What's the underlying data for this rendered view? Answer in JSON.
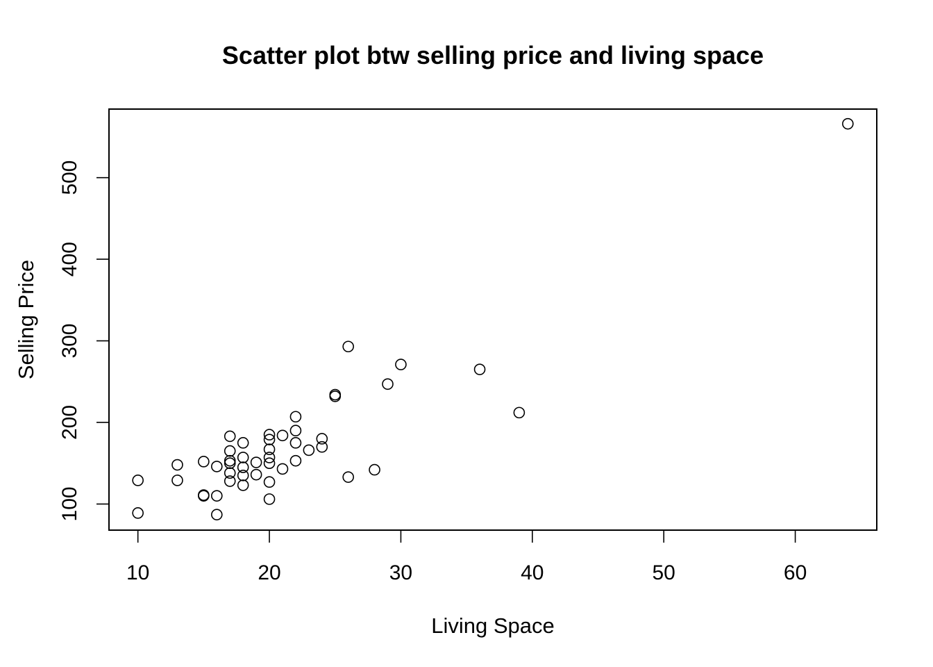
{
  "chart_data": {
    "type": "scatter",
    "title": "Scatter plot btw selling price and living space",
    "xlabel": "Living Space",
    "ylabel": "Selling Price",
    "xlim": [
      7.8,
      66.2
    ],
    "ylim": [
      68,
      584
    ],
    "x_ticks": [
      10,
      20,
      30,
      40,
      50,
      60
    ],
    "y_ticks": [
      100,
      200,
      300,
      400,
      500
    ],
    "x_tick_labels": [
      "10",
      "20",
      "30",
      "40",
      "50",
      "60"
    ],
    "y_tick_labels": [
      "100",
      "200",
      "300",
      "400",
      "500"
    ],
    "marker": "open-circle",
    "color": "#000000",
    "grid": false,
    "legend": false,
    "points": [
      {
        "x": 10,
        "y": 129
      },
      {
        "x": 10,
        "y": 89
      },
      {
        "x": 13,
        "y": 148
      },
      {
        "x": 13,
        "y": 129
      },
      {
        "x": 15,
        "y": 152
      },
      {
        "x": 15,
        "y": 111
      },
      {
        "x": 15,
        "y": 110
      },
      {
        "x": 16,
        "y": 146
      },
      {
        "x": 16,
        "y": 110
      },
      {
        "x": 16,
        "y": 87
      },
      {
        "x": 17,
        "y": 183
      },
      {
        "x": 17,
        "y": 165
      },
      {
        "x": 17,
        "y": 153
      },
      {
        "x": 17,
        "y": 150
      },
      {
        "x": 17,
        "y": 138
      },
      {
        "x": 17,
        "y": 128
      },
      {
        "x": 18,
        "y": 175
      },
      {
        "x": 18,
        "y": 157
      },
      {
        "x": 18,
        "y": 145
      },
      {
        "x": 18,
        "y": 135
      },
      {
        "x": 18,
        "y": 123
      },
      {
        "x": 19,
        "y": 151
      },
      {
        "x": 19,
        "y": 136
      },
      {
        "x": 20,
        "y": 185
      },
      {
        "x": 20,
        "y": 179
      },
      {
        "x": 20,
        "y": 167
      },
      {
        "x": 20,
        "y": 157
      },
      {
        "x": 20,
        "y": 150
      },
      {
        "x": 20,
        "y": 127
      },
      {
        "x": 20,
        "y": 106
      },
      {
        "x": 21,
        "y": 184
      },
      {
        "x": 21,
        "y": 143
      },
      {
        "x": 22,
        "y": 207
      },
      {
        "x": 22,
        "y": 190
      },
      {
        "x": 22,
        "y": 175
      },
      {
        "x": 22,
        "y": 153
      },
      {
        "x": 23,
        "y": 166
      },
      {
        "x": 24,
        "y": 180
      },
      {
        "x": 24,
        "y": 170
      },
      {
        "x": 25,
        "y": 234
      },
      {
        "x": 25,
        "y": 232
      },
      {
        "x": 26,
        "y": 293
      },
      {
        "x": 26,
        "y": 133
      },
      {
        "x": 28,
        "y": 142
      },
      {
        "x": 29,
        "y": 247
      },
      {
        "x": 30,
        "y": 271
      },
      {
        "x": 36,
        "y": 265
      },
      {
        "x": 39,
        "y": 212
      },
      {
        "x": 64,
        "y": 566
      }
    ]
  }
}
